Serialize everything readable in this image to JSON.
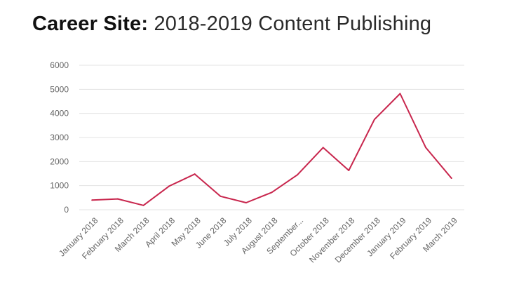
{
  "title": {
    "bold": "Career Site:",
    "light": "2018-2019 Content Publishing"
  },
  "colors": {
    "line": "#c8264d",
    "grid": "#e3e3e3",
    "tick_text": "#666666"
  },
  "chart_data": {
    "type": "line",
    "title": "Career Site: 2018-2019 Content Publishing",
    "xlabel": "",
    "ylabel": "",
    "categories": [
      "January 2018",
      "February 2018",
      "March 2018",
      "April 2018",
      "May 2018",
      "June 2018",
      "July 2018",
      "August 2018",
      "September...",
      "October 2018",
      "November 2018",
      "December 2018",
      "January 2019",
      "February 2019",
      "March 2019"
    ],
    "series": [
      {
        "values": [
          400,
          450,
          180,
          980,
          1480,
          560,
          290,
          720,
          1450,
          2580,
          1630,
          3750,
          4820,
          2580,
          1310
        ]
      }
    ],
    "ylim": [
      0,
      6000
    ],
    "yticks": [
      0,
      1000,
      2000,
      3000,
      4000,
      5000,
      6000
    ],
    "grid": true,
    "legend": "none"
  }
}
